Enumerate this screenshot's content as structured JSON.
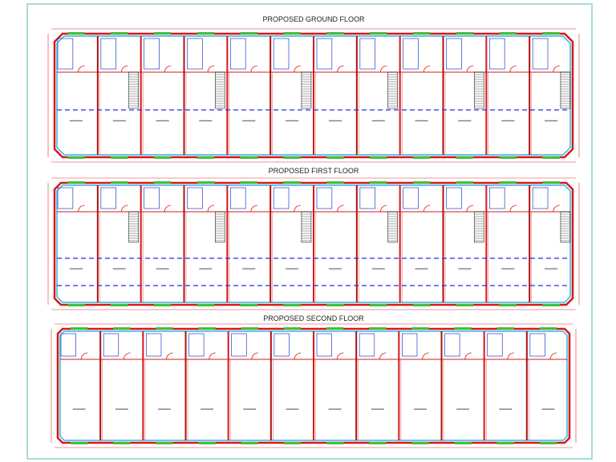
{
  "plans": [
    {
      "title": "PROPOSED GROUND FLOOR"
    },
    {
      "title": "PROPOSED FIRST FLOOR"
    },
    {
      "title": "PROPOSED SECOND FLOOR"
    }
  ]
}
